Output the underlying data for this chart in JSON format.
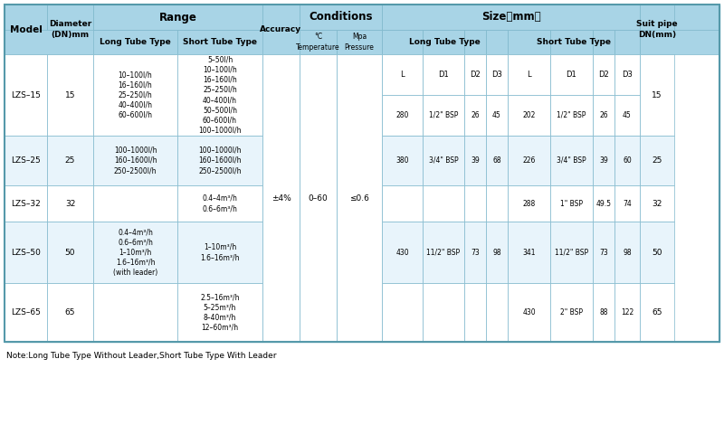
{
  "note": "Note:Long Tube Type Without Leader,Short Tube Type With Leader",
  "header_bg": "#A8D4E6",
  "white_bg": "#FFFFFF",
  "light_bg": "#E8F4FB",
  "rows": [
    {
      "model": "LZS–15",
      "diameter": "15",
      "long_range": "10–100l/h\n16–160l/h\n25–250l/h\n40–400l/h\n60–600l/h",
      "short_range": "5–50l/h\n10–100l/h\n16–160l/h\n25–250l/h\n40–400l/h\n50–500l/h\n60–600l/h\n100–1000l/h",
      "long_L": "280",
      "long_D1": "1/2\" BSP",
      "long_D2": "26",
      "long_D3": "45",
      "short_L": "202",
      "short_D1": "1/2\" BSP",
      "short_D2": "26",
      "short_D3": "45",
      "suit": "15"
    },
    {
      "model": "LZS–25",
      "diameter": "25",
      "long_range": "100–1000l/h\n160–1600l/h\n250–2500l/h",
      "short_range": "100–1000l/h\n160–1600l/h\n250–2500l/h",
      "long_L": "380",
      "long_D1": "3/4\" BSP",
      "long_D2": "39",
      "long_D3": "68",
      "short_L": "226",
      "short_D1": "3/4\" BSP",
      "short_D2": "39",
      "short_D3": "60",
      "suit": "25"
    },
    {
      "model": "LZS–32",
      "diameter": "32",
      "long_range": "",
      "short_range": "0.4–4m³/h\n0.6–6m³/h",
      "long_L": "",
      "long_D1": "",
      "long_D2": "",
      "long_D3": "",
      "short_L": "288",
      "short_D1": "1\" BSP",
      "short_D2": "49.5",
      "short_D3": "74",
      "suit": "32"
    },
    {
      "model": "LZS–50",
      "diameter": "50",
      "long_range": "0.4–4m³/h\n0.6–6m³/h\n1–10m³/h\n1.6–16m³/h\n(with leader)",
      "short_range": "1–10m³/h\n1.6–16m³/h",
      "long_L": "430",
      "long_D1": "11/2\" BSP",
      "long_D2": "73",
      "long_D3": "98",
      "short_L": "341",
      "short_D1": "11/2\" BSP",
      "short_D2": "73",
      "short_D3": "98",
      "suit": "50"
    },
    {
      "model": "LZS–65",
      "diameter": "65",
      "long_range": "",
      "short_range": "2.5–16m³/h\n5–25m³/h\n8–40m³/h\n12–60m³/h",
      "long_L": "",
      "long_D1": "",
      "long_D2": "",
      "long_D3": "",
      "short_L": "430",
      "short_D1": "2\" BSP",
      "short_D2": "88",
      "short_D3": "122",
      "suit": "65"
    }
  ],
  "accuracy": "±4%",
  "temp": "0–60",
  "pressure": "≤0.6"
}
